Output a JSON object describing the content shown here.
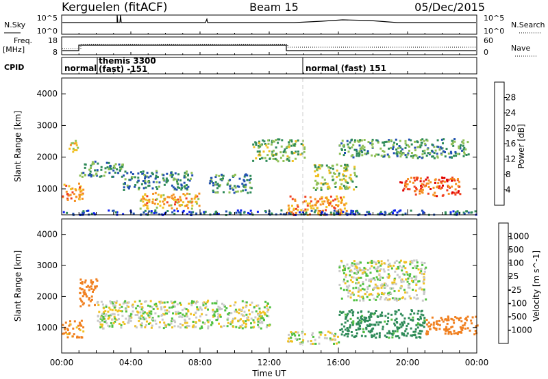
{
  "header": {
    "station": "Kerguelen (fitACF)",
    "beam": "Beam 15",
    "date": "05/Dec/2015"
  },
  "panels": {
    "nsky": {
      "label": "N.Sky",
      "right_label": "N.Search",
      "left_ticks": [
        "10^5",
        "10^0"
      ],
      "right_ticks": [
        "10^5",
        "10^0"
      ]
    },
    "freq": {
      "label_top": "Freq.",
      "label_unit": "[MHz]",
      "right_label": "Nave",
      "left_ticks": [
        "18",
        "8"
      ],
      "right_ticks": [
        "60",
        "0"
      ]
    },
    "cpid": {
      "label": "CPID",
      "segments": [
        {
          "start_h": 0,
          "end_h": 1.0,
          "text_line1": "normal",
          "text_line2": ""
        },
        {
          "start_h": 1.0,
          "end_h": 14.0,
          "text_line1": "themis 3300",
          "text_line2": "(fast) -151"
        },
        {
          "start_h": 14.0,
          "end_h": 24.0,
          "text_line1": "normal (fast) 151",
          "text_line2": ""
        }
      ]
    }
  },
  "chart_data": [
    {
      "type": "heatmap",
      "title": "",
      "xlabel": "Time UT",
      "ylabel": "Slant Range [km]",
      "xlim_hours": [
        0,
        24
      ],
      "x_ticks": [
        "00:00",
        "04:00",
        "08:00",
        "12:00",
        "16:00",
        "20:00",
        "00:00"
      ],
      "ylim": [
        180,
        4500
      ],
      "y_ticks": [
        1000,
        2000,
        3000,
        4000
      ],
      "colorbar": {
        "label": "Power [dB]",
        "ticks": [
          "4",
          "8",
          "12",
          "16",
          "20",
          "24",
          "28"
        ],
        "colors": [
          "#0a1df0",
          "#2050b0",
          "#2e8a58",
          "#8fc055",
          "#f0c020",
          "#f59020",
          "#f04020",
          "#e00000"
        ]
      },
      "regions": [
        {
          "t": [
            0.0,
            1.2
          ],
          "r": [
            600,
            1200
          ],
          "power": 22
        },
        {
          "t": [
            0.4,
            1.0
          ],
          "r": [
            2200,
            2600
          ],
          "power": 16
        },
        {
          "t": [
            1.0,
            3.5
          ],
          "r": [
            1400,
            1900
          ],
          "power": 10
        },
        {
          "t": [
            3.5,
            7.5
          ],
          "r": [
            1000,
            1600
          ],
          "power": 9
        },
        {
          "t": [
            4.5,
            8.0
          ],
          "r": [
            400,
            900
          ],
          "power": 20
        },
        {
          "t": [
            8.5,
            11.0
          ],
          "r": [
            900,
            1500
          ],
          "power": 10
        },
        {
          "t": [
            11.0,
            14.0
          ],
          "r": [
            1900,
            2600
          ],
          "power": 13
        },
        {
          "t": [
            13.0,
            16.5
          ],
          "r": [
            200,
            800
          ],
          "power": 22
        },
        {
          "t": [
            14.5,
            17.0
          ],
          "r": [
            1000,
            1800
          ],
          "power": 14
        },
        {
          "t": [
            19.5,
            23.0
          ],
          "r": [
            800,
            1400
          ],
          "power": 25
        },
        {
          "t": [
            16.0,
            23.5
          ],
          "r": [
            2000,
            2600
          ],
          "power": 11
        },
        {
          "t": [
            0.0,
            24.0
          ],
          "r": [
            200,
            350
          ],
          "power": 6
        }
      ]
    },
    {
      "type": "heatmap",
      "title": "",
      "xlabel": "Time UT",
      "ylabel": "Slant Range [km]",
      "xlim_hours": [
        0,
        24
      ],
      "x_ticks": [
        "00:00",
        "04:00",
        "08:00",
        "12:00",
        "16:00",
        "20:00",
        "00:00"
      ],
      "ylim": [
        180,
        4500
      ],
      "y_ticks": [
        1000,
        2000,
        3000,
        4000
      ],
      "colorbar": {
        "label": "Velocity [m s^-1]",
        "ticks": [
          "1000",
          "500",
          "100",
          "25",
          "-25",
          "-100",
          "-500",
          "-1000"
        ],
        "colors": [
          "#1f3fa0",
          "#2e5fb0",
          "#2e8a58",
          "#50c040",
          "#c8c8c8",
          "#f0c020",
          "#f08020",
          "#f04020",
          "#e00000"
        ]
      },
      "regions": [
        {
          "t": [
            0.0,
            1.2
          ],
          "r": [
            700,
            1300
          ],
          "velocity": -150
        },
        {
          "t": [
            1.0,
            2.0
          ],
          "r": [
            1700,
            2600
          ],
          "velocity": -400
        },
        {
          "t": [
            2.0,
            12.0
          ],
          "r": [
            1000,
            1900
          ],
          "velocity": 0
        },
        {
          "t": [
            13.0,
            16.0
          ],
          "r": [
            500,
            900
          ],
          "velocity": 0
        },
        {
          "t": [
            16.0,
            21.0
          ],
          "r": [
            700,
            1600
          ],
          "velocity": 150
        },
        {
          "t": [
            21.0,
            24.0
          ],
          "r": [
            800,
            1400
          ],
          "velocity": -200
        },
        {
          "t": [
            16.0,
            21.0
          ],
          "r": [
            1900,
            3200
          ],
          "velocity": 0
        }
      ]
    }
  ]
}
